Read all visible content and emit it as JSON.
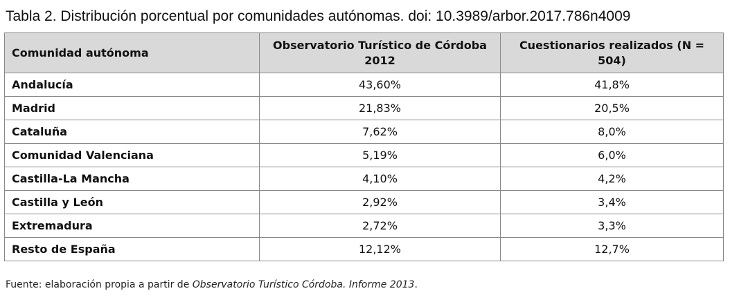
{
  "caption": "Tabla 2. Distribución porcentual por comunidades autónomas. doi: 10.3989/arbor.2017.786n4009",
  "table": {
    "headers": [
      "Comunidad autónoma",
      "Observatorio Turístico de Córdoba 2012",
      "Cuestionarios realizados (N = 504)"
    ],
    "rows": [
      [
        "Andalucía",
        "43,60%",
        "41,8%"
      ],
      [
        "Madrid",
        "21,83%",
        "20,5%"
      ],
      [
        "Cataluña",
        "7,62%",
        "8,0%"
      ],
      [
        "Comunidad Valenciana",
        "5,19%",
        "6,0%"
      ],
      [
        "Castilla-La Mancha",
        "4,10%",
        "4,2%"
      ],
      [
        "Castilla y León",
        "2,92%",
        "3,4%"
      ],
      [
        "Extremadura",
        "2,72%",
        "3,3%"
      ],
      [
        "Resto de España",
        "12,12%",
        "12,7%"
      ]
    ]
  },
  "source": {
    "prefix": "Fuente: elaboración propia a partir de ",
    "italic": "Observatorio Turístico Córdoba. Informe 2013",
    "suffix": "."
  }
}
